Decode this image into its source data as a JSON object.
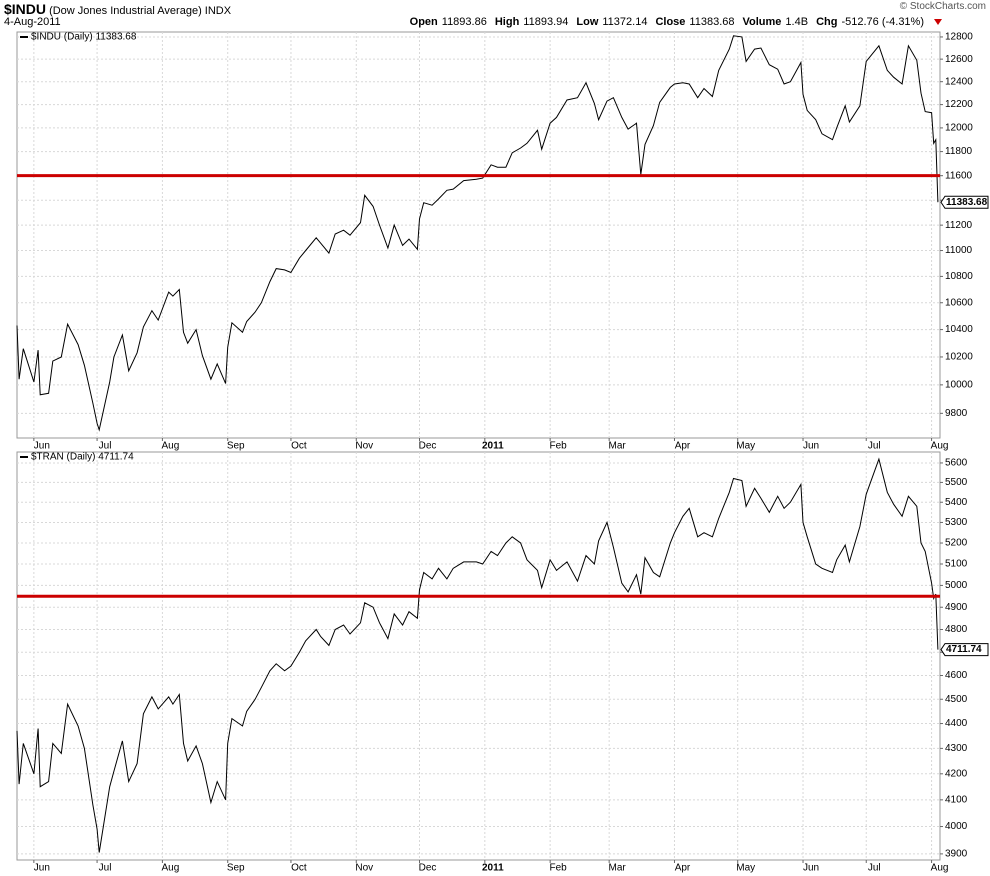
{
  "header": {
    "symbol": "$INDU",
    "description": "(Dow Jones Industrial Average) INDX",
    "date": "4-Aug-2011",
    "copyright": "© StockCharts.com",
    "quote": [
      {
        "label": "Open",
        "value": "11893.86"
      },
      {
        "label": "High",
        "value": "11893.94"
      },
      {
        "label": "Low",
        "value": "11372.14"
      },
      {
        "label": "Close",
        "value": "11383.68"
      },
      {
        "label": "Volume",
        "value": "1.4B"
      },
      {
        "label": "Chg",
        "value": "-512.76 (-4.31%)"
      }
    ]
  },
  "chart_data": [
    {
      "type": "line",
      "log_scale": true,
      "grid": true,
      "x": [
        "2010-05-24",
        "2010-05-25",
        "2010-05-27",
        "2010-06-01",
        "2010-06-03",
        "2010-06-04",
        "2010-06-08",
        "2010-06-10",
        "2010-06-14",
        "2010-06-17",
        "2010-06-22",
        "2010-06-25",
        "2010-06-29",
        "2010-07-01",
        "2010-07-02",
        "2010-07-07",
        "2010-07-09",
        "2010-07-13",
        "2010-07-16",
        "2010-07-20",
        "2010-07-23",
        "2010-07-27",
        "2010-07-30",
        "2010-08-04",
        "2010-08-06",
        "2010-08-09",
        "2010-08-11",
        "2010-08-13",
        "2010-08-17",
        "2010-08-20",
        "2010-08-24",
        "2010-08-27",
        "2010-08-31",
        "2010-09-01",
        "2010-09-03",
        "2010-09-08",
        "2010-09-10",
        "2010-09-14",
        "2010-09-17",
        "2010-09-21",
        "2010-09-24",
        "2010-09-28",
        "2010-10-01",
        "2010-10-05",
        "2010-10-08",
        "2010-10-13",
        "2010-10-15",
        "2010-10-19",
        "2010-10-22",
        "2010-10-26",
        "2010-10-29",
        "2010-11-03",
        "2010-11-05",
        "2010-11-09",
        "2010-11-12",
        "2010-11-16",
        "2010-11-19",
        "2010-11-23",
        "2010-11-26",
        "2010-11-30",
        "2010-12-01",
        "2010-12-03",
        "2010-12-07",
        "2010-12-10",
        "2010-12-14",
        "2010-12-17",
        "2010-12-22",
        "2010-12-28",
        "2010-12-31",
        "2011-01-04",
        "2011-01-07",
        "2011-01-11",
        "2011-01-14",
        "2011-01-18",
        "2011-01-21",
        "2011-01-26",
        "2011-01-28",
        "2011-02-01",
        "2011-02-04",
        "2011-02-09",
        "2011-02-14",
        "2011-02-18",
        "2011-02-22",
        "2011-02-24",
        "2011-02-28",
        "2011-03-03",
        "2011-03-07",
        "2011-03-10",
        "2011-03-14",
        "2011-03-16",
        "2011-03-18",
        "2011-03-22",
        "2011-03-25",
        "2011-03-30",
        "2011-04-01",
        "2011-04-05",
        "2011-04-08",
        "2011-04-12",
        "2011-04-15",
        "2011-04-19",
        "2011-04-22",
        "2011-04-27",
        "2011-04-29",
        "2011-05-03",
        "2011-05-05",
        "2011-05-09",
        "2011-05-12",
        "2011-05-16",
        "2011-05-20",
        "2011-05-23",
        "2011-05-26",
        "2011-05-31",
        "2011-06-01",
        "2011-06-03",
        "2011-06-07",
        "2011-06-10",
        "2011-06-15",
        "2011-06-17",
        "2011-06-21",
        "2011-06-23",
        "2011-06-28",
        "2011-07-01",
        "2011-07-07",
        "2011-07-11",
        "2011-07-14",
        "2011-07-18",
        "2011-07-21",
        "2011-07-25",
        "2011-07-27",
        "2011-07-29",
        "2011-08-01",
        "2011-08-02",
        "2011-08-03",
        "2011-08-04"
      ],
      "series": [
        {
          "name": "$INDU (Daily) 11383.68",
          "color": "#000000",
          "values": [
            10430,
            10040,
            10260,
            10020,
            10250,
            9930,
            9940,
            10170,
            10200,
            10440,
            10290,
            10140,
            9870,
            9730,
            9686,
            10020,
            10200,
            10360,
            10100,
            10230,
            10420,
            10540,
            10470,
            10680,
            10650,
            10700,
            10380,
            10300,
            10400,
            10210,
            10040,
            10150,
            10010,
            10270,
            10450,
            10380,
            10460,
            10530,
            10600,
            10760,
            10860,
            10850,
            10830,
            10940,
            11000,
            11100,
            11060,
            10980,
            11130,
            11160,
            11120,
            11220,
            11440,
            11350,
            11200,
            11020,
            11200,
            11040,
            11090,
            11010,
            11250,
            11380,
            11360,
            11410,
            11480,
            11490,
            11560,
            11570,
            11580,
            11690,
            11670,
            11670,
            11790,
            11830,
            11870,
            11980,
            11820,
            12040,
            12090,
            12240,
            12260,
            12390,
            12210,
            12070,
            12230,
            12260,
            12090,
            11990,
            12040,
            11610,
            11860,
            12020,
            12220,
            12350,
            12380,
            12390,
            12380,
            12260,
            12340,
            12270,
            12500,
            12690,
            12810,
            12800,
            12580,
            12690,
            12700,
            12550,
            12510,
            12380,
            12400,
            12570,
            12290,
            12150,
            12070,
            11950,
            11900,
            12000,
            12190,
            12050,
            12190,
            12580,
            12720,
            12500,
            12440,
            12380,
            12720,
            12590,
            12300,
            12140,
            12130,
            11870,
            11900,
            11383.68
          ]
        }
      ],
      "reference_lines": [
        {
          "value": 11600,
          "color": "#cc0000"
        }
      ],
      "xlim": [
        "2010-05-24",
        "2011-08-05"
      ],
      "xticks": [
        {
          "value": "2010-06-01",
          "label": "Jun"
        },
        {
          "value": "2010-07-01",
          "label": "Jul"
        },
        {
          "value": "2010-08-01",
          "label": "Aug"
        },
        {
          "value": "2010-09-01",
          "label": "Sep"
        },
        {
          "value": "2010-10-01",
          "label": "Oct"
        },
        {
          "value": "2010-11-01",
          "label": "Nov"
        },
        {
          "value": "2010-12-01",
          "label": "Dec"
        },
        {
          "value": "2011-01-01",
          "label": "2011"
        },
        {
          "value": "2011-02-01",
          "label": "Feb"
        },
        {
          "value": "2011-03-01",
          "label": "Mar"
        },
        {
          "value": "2011-04-01",
          "label": "Apr"
        },
        {
          "value": "2011-05-01",
          "label": "May"
        },
        {
          "value": "2011-06-01",
          "label": "Jun"
        },
        {
          "value": "2011-07-01",
          "label": "Jul"
        },
        {
          "value": "2011-08-01",
          "label": "Aug"
        }
      ],
      "ylim": [
        9630,
        12845
      ],
      "yticks": [
        9800,
        10000,
        10200,
        10400,
        10600,
        10800,
        11000,
        11200,
        11400,
        11600,
        11800,
        12000,
        12200,
        12400,
        12600,
        12800
      ]
    },
    {
      "type": "line",
      "log_scale": true,
      "grid": true,
      "x": [
        "2010-05-24",
        "2010-05-25",
        "2010-05-27",
        "2010-06-01",
        "2010-06-03",
        "2010-06-04",
        "2010-06-08",
        "2010-06-10",
        "2010-06-14",
        "2010-06-17",
        "2010-06-22",
        "2010-06-25",
        "2010-06-29",
        "2010-07-01",
        "2010-07-02",
        "2010-07-07",
        "2010-07-09",
        "2010-07-13",
        "2010-07-16",
        "2010-07-20",
        "2010-07-23",
        "2010-07-27",
        "2010-07-30",
        "2010-08-04",
        "2010-08-06",
        "2010-08-09",
        "2010-08-11",
        "2010-08-13",
        "2010-08-17",
        "2010-08-20",
        "2010-08-24",
        "2010-08-27",
        "2010-08-31",
        "2010-09-01",
        "2010-09-03",
        "2010-09-08",
        "2010-09-10",
        "2010-09-14",
        "2010-09-17",
        "2010-09-21",
        "2010-09-24",
        "2010-09-28",
        "2010-10-01",
        "2010-10-05",
        "2010-10-08",
        "2010-10-13",
        "2010-10-15",
        "2010-10-19",
        "2010-10-22",
        "2010-10-26",
        "2010-10-29",
        "2010-11-03",
        "2010-11-05",
        "2010-11-09",
        "2010-11-12",
        "2010-11-16",
        "2010-11-19",
        "2010-11-23",
        "2010-11-26",
        "2010-11-30",
        "2010-12-01",
        "2010-12-03",
        "2010-12-07",
        "2010-12-10",
        "2010-12-14",
        "2010-12-17",
        "2010-12-22",
        "2010-12-28",
        "2010-12-31",
        "2011-01-04",
        "2011-01-07",
        "2011-01-11",
        "2011-01-14",
        "2011-01-18",
        "2011-01-21",
        "2011-01-26",
        "2011-01-28",
        "2011-02-01",
        "2011-02-04",
        "2011-02-09",
        "2011-02-14",
        "2011-02-18",
        "2011-02-22",
        "2011-02-24",
        "2011-02-28",
        "2011-03-03",
        "2011-03-07",
        "2011-03-10",
        "2011-03-14",
        "2011-03-16",
        "2011-03-18",
        "2011-03-22",
        "2011-03-25",
        "2011-03-30",
        "2011-04-01",
        "2011-04-05",
        "2011-04-08",
        "2011-04-12",
        "2011-04-15",
        "2011-04-19",
        "2011-04-22",
        "2011-04-27",
        "2011-04-29",
        "2011-05-03",
        "2011-05-05",
        "2011-05-09",
        "2011-05-12",
        "2011-05-16",
        "2011-05-20",
        "2011-05-23",
        "2011-05-26",
        "2011-05-31",
        "2011-06-01",
        "2011-06-03",
        "2011-06-07",
        "2011-06-10",
        "2011-06-15",
        "2011-06-17",
        "2011-06-21",
        "2011-06-23",
        "2011-06-28",
        "2011-07-01",
        "2011-07-07",
        "2011-07-11",
        "2011-07-14",
        "2011-07-18",
        "2011-07-21",
        "2011-07-25",
        "2011-07-27",
        "2011-07-29",
        "2011-08-01",
        "2011-08-02",
        "2011-08-03",
        "2011-08-04"
      ],
      "series": [
        {
          "name": "$TRAN (Daily) 4711.74",
          "color": "#000000",
          "values": [
            4370,
            4160,
            4320,
            4200,
            4380,
            4150,
            4170,
            4320,
            4280,
            4480,
            4390,
            4300,
            4080,
            3990,
            3905,
            4150,
            4210,
            4330,
            4170,
            4240,
            4440,
            4510,
            4460,
            4510,
            4480,
            4520,
            4320,
            4250,
            4310,
            4240,
            4090,
            4170,
            4100,
            4320,
            4420,
            4390,
            4450,
            4500,
            4550,
            4620,
            4650,
            4620,
            4640,
            4700,
            4750,
            4800,
            4770,
            4730,
            4800,
            4820,
            4780,
            4830,
            4920,
            4900,
            4830,
            4760,
            4870,
            4820,
            4880,
            4850,
            4980,
            5060,
            5030,
            5080,
            5030,
            5080,
            5110,
            5110,
            5100,
            5160,
            5140,
            5200,
            5230,
            5200,
            5120,
            5070,
            4990,
            5120,
            5070,
            5110,
            5020,
            5140,
            5100,
            5210,
            5300,
            5180,
            5010,
            4970,
            5050,
            4960,
            5130,
            5060,
            5040,
            5200,
            5250,
            5330,
            5370,
            5230,
            5250,
            5230,
            5320,
            5450,
            5520,
            5510,
            5380,
            5470,
            5420,
            5350,
            5430,
            5370,
            5400,
            5490,
            5300,
            5230,
            5100,
            5080,
            5060,
            5120,
            5190,
            5110,
            5280,
            5440,
            5620,
            5450,
            5390,
            5330,
            5430,
            5380,
            5200,
            5160,
            5010,
            4940,
            4960,
            4711.74
          ]
        }
      ],
      "reference_lines": [
        {
          "value": 4950,
          "color": "#cc0000"
        }
      ],
      "xlim": [
        "2010-05-24",
        "2011-08-05"
      ],
      "xticks": [
        {
          "value": "2010-06-01",
          "label": "Jun"
        },
        {
          "value": "2010-07-01",
          "label": "Jul"
        },
        {
          "value": "2010-08-01",
          "label": "Aug"
        },
        {
          "value": "2010-09-01",
          "label": "Sep"
        },
        {
          "value": "2010-10-01",
          "label": "Oct"
        },
        {
          "value": "2010-11-01",
          "label": "Nov"
        },
        {
          "value": "2010-12-01",
          "label": "Dec"
        },
        {
          "value": "2011-01-01",
          "label": "2011"
        },
        {
          "value": "2011-02-01",
          "label": "Feb"
        },
        {
          "value": "2011-03-01",
          "label": "Mar"
        },
        {
          "value": "2011-04-01",
          "label": "Apr"
        },
        {
          "value": "2011-05-01",
          "label": "May"
        },
        {
          "value": "2011-06-01",
          "label": "Jun"
        },
        {
          "value": "2011-07-01",
          "label": "Jul"
        },
        {
          "value": "2011-08-01",
          "label": "Aug"
        }
      ],
      "ylim": [
        3878,
        5657
      ],
      "yticks": [
        3900,
        4000,
        4100,
        4200,
        4300,
        4400,
        4500,
        4600,
        4700,
        4800,
        4900,
        5000,
        5100,
        5200,
        5300,
        5400,
        5500,
        5600
      ]
    }
  ]
}
